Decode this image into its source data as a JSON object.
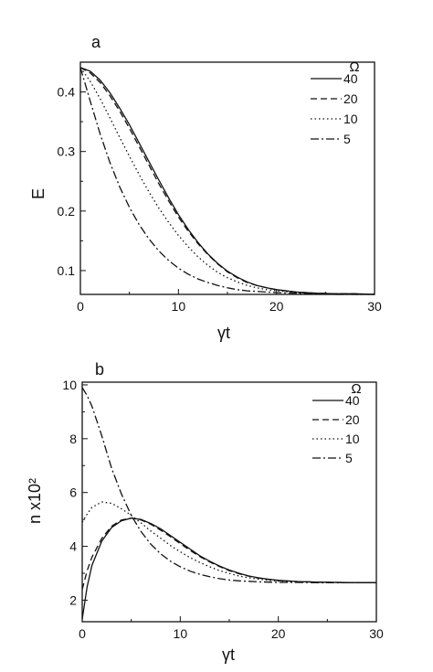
{
  "chart_data": [
    {
      "type": "line",
      "panel": "a",
      "xlabel": "γt",
      "ylabel": "E",
      "xlim": [
        0,
        30
      ],
      "ylim": [
        0.06,
        0.45
      ],
      "xticks": [
        "0",
        "10",
        "20",
        "30"
      ],
      "xtick_values": [
        0,
        10,
        20,
        30
      ],
      "yticks": [
        "0.1",
        "0.2",
        "0.3",
        "0.4"
      ],
      "ytick_values": [
        0.1,
        0.2,
        0.3,
        0.4
      ],
      "legend_title": "Ω",
      "legend_position": "top-right",
      "series": [
        {
          "name": "40",
          "style": "solid",
          "x": [
            0,
            1,
            2,
            3,
            4,
            5,
            6,
            7,
            8,
            9,
            10,
            11,
            12,
            13,
            14,
            15,
            16,
            17,
            18,
            19,
            20,
            22,
            24,
            26,
            28,
            30
          ],
          "y": [
            0.441,
            0.435,
            0.42,
            0.399,
            0.373,
            0.345,
            0.314,
            0.283,
            0.252,
            0.222,
            0.194,
            0.169,
            0.147,
            0.128,
            0.112,
            0.099,
            0.089,
            0.081,
            0.075,
            0.071,
            0.068,
            0.064,
            0.062,
            0.061,
            0.061,
            0.06
          ]
        },
        {
          "name": "20",
          "style": "dashed",
          "x": [
            0,
            1,
            2,
            3,
            4,
            5,
            6,
            7,
            8,
            9,
            10,
            11,
            12,
            13,
            14,
            15,
            16,
            17,
            18,
            19,
            20,
            22,
            24,
            26,
            28,
            30
          ],
          "y": [
            0.441,
            0.432,
            0.416,
            0.394,
            0.368,
            0.339,
            0.308,
            0.277,
            0.246,
            0.217,
            0.19,
            0.166,
            0.145,
            0.127,
            0.111,
            0.098,
            0.088,
            0.08,
            0.075,
            0.071,
            0.068,
            0.064,
            0.062,
            0.061,
            0.061,
            0.06
          ]
        },
        {
          "name": "10",
          "style": "dotted",
          "x": [
            0,
            1,
            2,
            3,
            4,
            5,
            6,
            7,
            8,
            9,
            10,
            11,
            12,
            13,
            14,
            15,
            16,
            17,
            18,
            19,
            20,
            22,
            24,
            26,
            28,
            30
          ],
          "y": [
            0.441,
            0.418,
            0.389,
            0.357,
            0.324,
            0.292,
            0.261,
            0.232,
            0.205,
            0.181,
            0.159,
            0.14,
            0.123,
            0.109,
            0.097,
            0.088,
            0.081,
            0.075,
            0.071,
            0.068,
            0.066,
            0.063,
            0.061,
            0.061,
            0.06,
            0.06
          ]
        },
        {
          "name": "5",
          "style": "dashdot",
          "x": [
            0,
            1,
            2,
            3,
            4,
            5,
            6,
            7,
            8,
            9,
            10,
            11,
            12,
            13,
            14,
            15,
            16,
            17,
            18,
            19,
            20,
            22,
            24,
            26,
            28,
            30
          ],
          "y": [
            0.441,
            0.385,
            0.33,
            0.282,
            0.241,
            0.206,
            0.177,
            0.153,
            0.133,
            0.117,
            0.104,
            0.094,
            0.086,
            0.08,
            0.075,
            0.071,
            0.068,
            0.066,
            0.065,
            0.064,
            0.063,
            0.062,
            0.061,
            0.06,
            0.06,
            0.06
          ]
        }
      ]
    },
    {
      "type": "line",
      "panel": "b",
      "xlabel": "γt",
      "ylabel": "n x10²",
      "xlim": [
        0,
        30
      ],
      "ylim": [
        1.2,
        10.1
      ],
      "xticks": [
        "0",
        "10",
        "20",
        "30"
      ],
      "xtick_values": [
        0,
        10,
        20,
        30
      ],
      "yticks": [
        "2",
        "4",
        "6",
        "8",
        "10"
      ],
      "ytick_values": [
        2,
        4,
        6,
        8,
        10
      ],
      "legend_title": "Ω",
      "legend_position": "top-right",
      "series": [
        {
          "name": "40",
          "style": "solid",
          "x": [
            0,
            0.5,
            1,
            2,
            3,
            4,
            5,
            6,
            7,
            8,
            9,
            10,
            11,
            12,
            13,
            14,
            15,
            16,
            17,
            18,
            19,
            20,
            22,
            24,
            26,
            28,
            30
          ],
          "y": [
            1.3,
            2.5,
            3.3,
            4.2,
            4.7,
            4.95,
            5.05,
            5.0,
            4.85,
            4.65,
            4.4,
            4.15,
            3.9,
            3.65,
            3.45,
            3.27,
            3.12,
            3.0,
            2.9,
            2.83,
            2.78,
            2.74,
            2.69,
            2.67,
            2.66,
            2.65,
            2.65
          ]
        },
        {
          "name": "20",
          "style": "dashed",
          "x": [
            0,
            0.5,
            1,
            2,
            3,
            4,
            5,
            6,
            7,
            8,
            9,
            10,
            11,
            12,
            13,
            14,
            15,
            16,
            17,
            18,
            19,
            20,
            22,
            24,
            26,
            28,
            30
          ],
          "y": [
            2.4,
            3.1,
            3.6,
            4.3,
            4.75,
            4.98,
            5.05,
            4.98,
            4.82,
            4.6,
            4.36,
            4.1,
            3.85,
            3.62,
            3.42,
            3.25,
            3.1,
            2.98,
            2.89,
            2.82,
            2.77,
            2.73,
            2.69,
            2.67,
            2.66,
            2.65,
            2.65
          ]
        },
        {
          "name": "10",
          "style": "dotted",
          "x": [
            0,
            0.5,
            1,
            2,
            3,
            4,
            5,
            6,
            7,
            8,
            9,
            10,
            11,
            12,
            13,
            14,
            15,
            16,
            17,
            18,
            19,
            20,
            22,
            24,
            26,
            28,
            30
          ],
          "y": [
            4.9,
            5.2,
            5.45,
            5.65,
            5.6,
            5.4,
            5.15,
            4.87,
            4.57,
            4.3,
            4.03,
            3.8,
            3.58,
            3.4,
            3.24,
            3.1,
            2.99,
            2.9,
            2.83,
            2.78,
            2.74,
            2.71,
            2.68,
            2.66,
            2.66,
            2.65,
            2.65
          ]
        },
        {
          "name": "5",
          "style": "dashdot",
          "x": [
            0,
            0.5,
            1,
            2,
            3,
            4,
            5,
            6,
            7,
            8,
            9,
            10,
            11,
            12,
            13,
            14,
            15,
            16,
            17,
            18,
            19,
            20,
            22,
            24,
            26,
            28,
            30
          ],
          "y": [
            9.9,
            9.6,
            9.2,
            8.1,
            6.9,
            5.95,
            5.15,
            4.55,
            4.08,
            3.72,
            3.45,
            3.24,
            3.08,
            2.96,
            2.87,
            2.8,
            2.75,
            2.72,
            2.7,
            2.68,
            2.67,
            2.66,
            2.66,
            2.65,
            2.65,
            2.65,
            2.65
          ]
        }
      ]
    }
  ]
}
